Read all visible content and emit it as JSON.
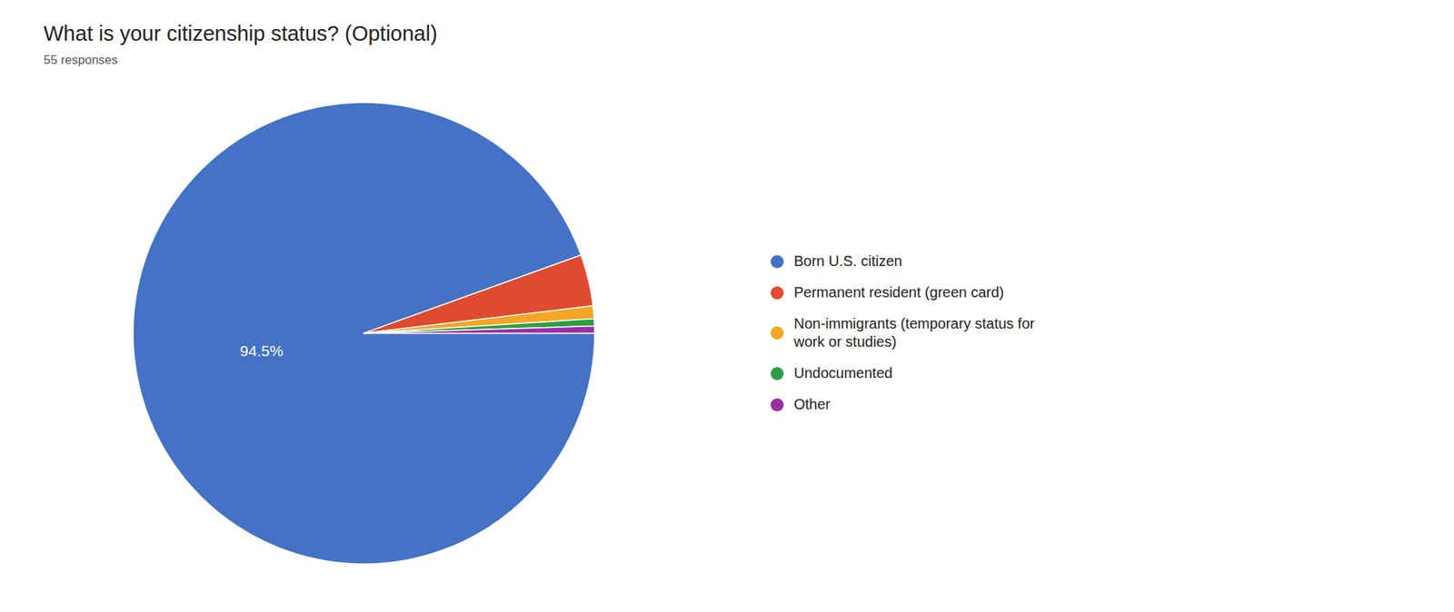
{
  "chart_data": {
    "type": "pie",
    "title": "What is your citizenship status? (Optional)",
    "subtitle": "55 responses",
    "categories": [
      "Born U.S. citizen",
      "Permanent resident (green card)",
      "Non-immigrants (temporary status for\nwork or studies)",
      "Undocumented",
      "Other"
    ],
    "values": [
      94.5,
      3.6,
      0.9,
      0.5,
      0.5
    ],
    "value_labels": [
      "94.5%",
      null,
      null,
      null,
      null
    ],
    "colors": [
      "#4472C4",
      "#E04A2F",
      "#F5A623",
      "#2E9E44",
      "#9B30A2"
    ],
    "data_labels": true,
    "legend": "right"
  }
}
